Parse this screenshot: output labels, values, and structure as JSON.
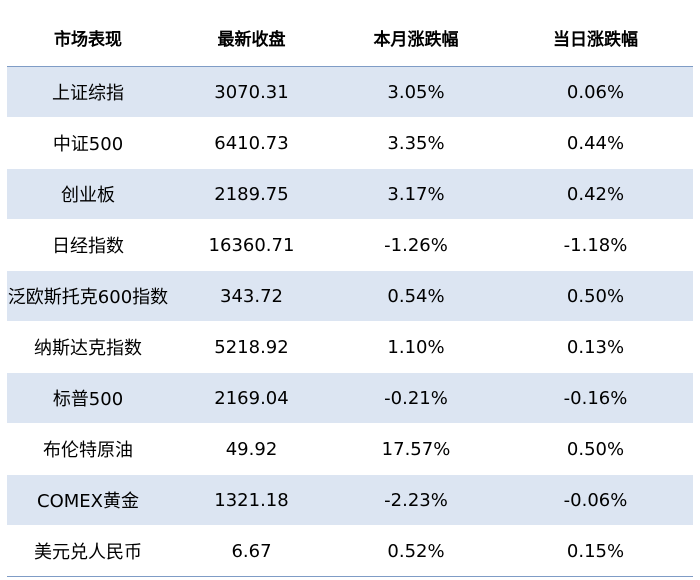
{
  "table": {
    "headers": [
      "市场表现",
      "最新收盘",
      "本月涨跌幅",
      "当日涨跌幅"
    ],
    "rows": [
      [
        "上证综指",
        "3070.31",
        "3.05%",
        "0.06%"
      ],
      [
        "中证500",
        "6410.73",
        "3.35%",
        "0.44%"
      ],
      [
        "创业板",
        "2189.75",
        "3.17%",
        "0.42%"
      ],
      [
        "日经指数",
        "16360.71",
        "-1.26%",
        "-1.18%"
      ],
      [
        "泛欧斯托克600指数",
        "343.72",
        "0.54%",
        "0.50%"
      ],
      [
        "纳斯达克指数",
        "5218.92",
        "1.10%",
        "0.13%"
      ],
      [
        "标普500",
        "2169.04",
        "-0.21%",
        "-0.16%"
      ],
      [
        "布伦特原油",
        "49.92",
        "17.57%",
        "0.50%"
      ],
      [
        "COMEX黄金",
        "1321.18",
        "-2.23%",
        "-0.06%"
      ],
      [
        "美元兑人民币",
        "6.67",
        "0.52%",
        "0.15%"
      ]
    ]
  },
  "colors": {
    "band": "#dce5f2",
    "rule": "#7f9cc6"
  }
}
